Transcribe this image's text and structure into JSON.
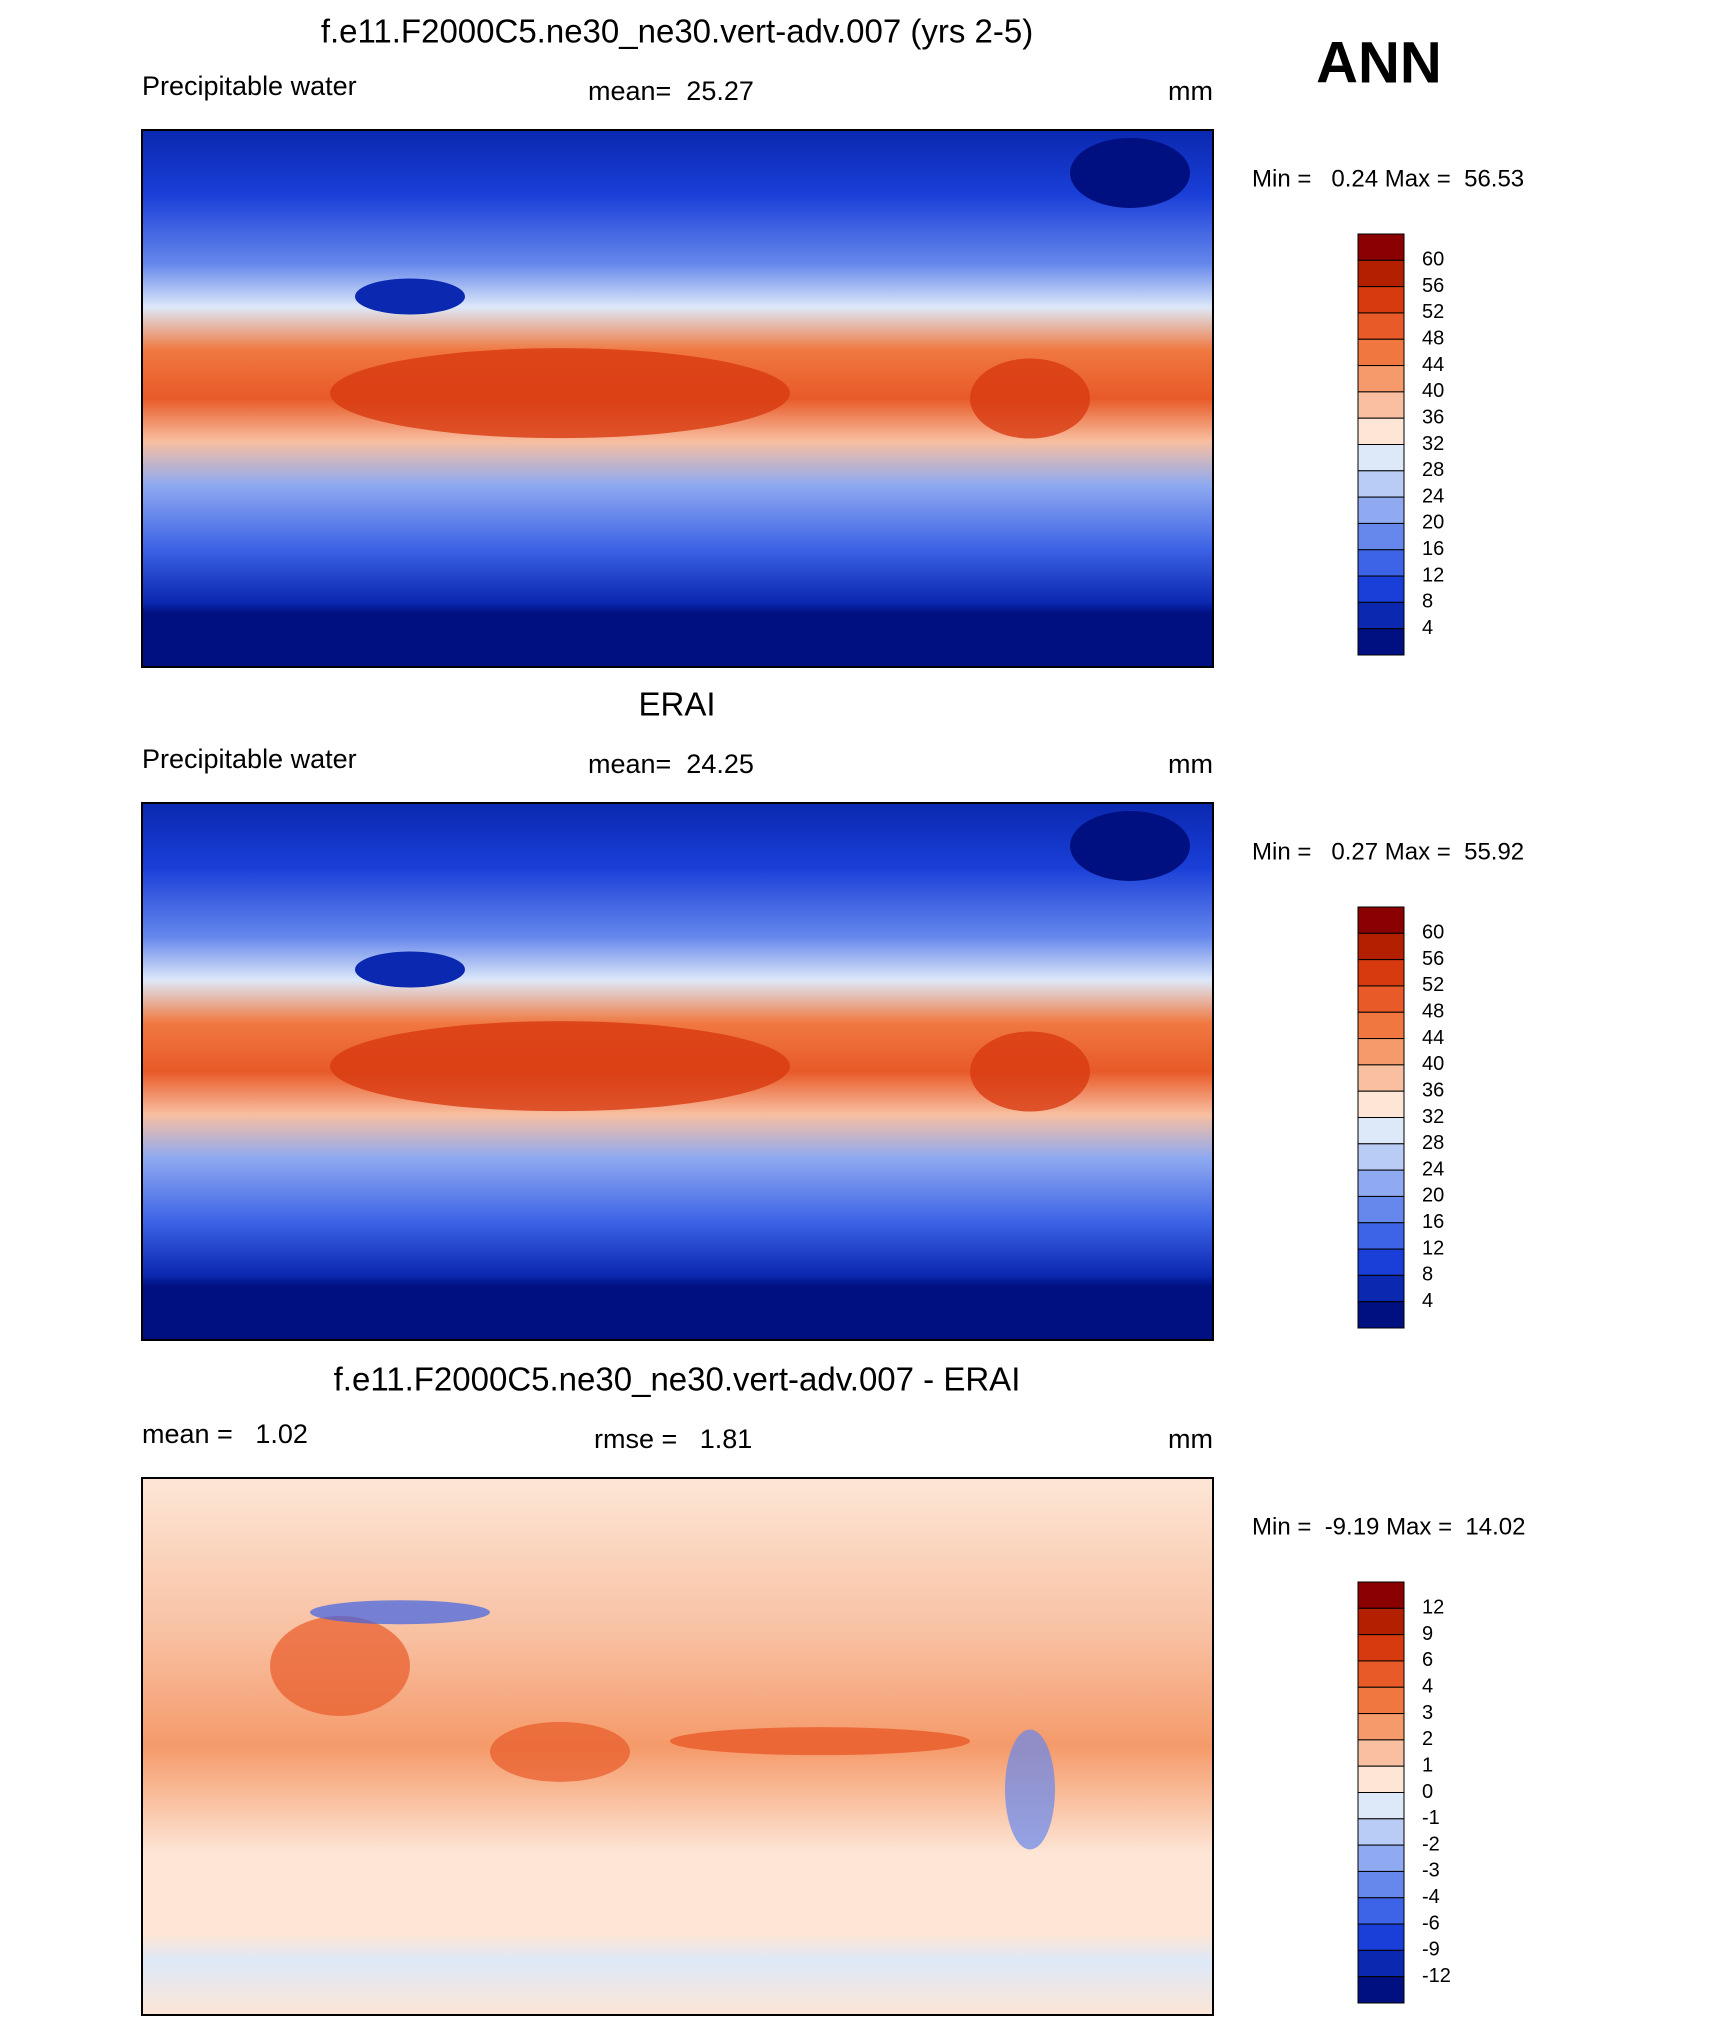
{
  "header": {
    "season": "ANN"
  },
  "panels": [
    {
      "title": "f.e11.F2000C5.ne30_ne30.vert-adv.007 (yrs 2-5)",
      "field_label": "Precipitable water",
      "stat_center": "mean=  25.27",
      "units": "mm",
      "minmax": "Min =   0.24 Max =  56.53",
      "colorbar": {
        "labels": [
          "60",
          "56",
          "52",
          "48",
          "44",
          "40",
          "36",
          "32",
          "28",
          "24",
          "20",
          "16",
          "12",
          "8",
          "4"
        ],
        "colors": [
          "#8b0000",
          "#b22000",
          "#d83a10",
          "#e85a28",
          "#f07840",
          "#f59a6a",
          "#f8bfa0",
          "#fde6d6",
          "#dde8f8",
          "#b8ccf5",
          "#8faaf0",
          "#6688ec",
          "#3d63e6",
          "#1a3fd8",
          "#0a28b0",
          "#001080"
        ]
      }
    },
    {
      "title": "ERAI",
      "field_label": "Precipitable water",
      "stat_center": "mean=  24.25",
      "units": "mm",
      "minmax": "Min =   0.27 Max =  55.92",
      "colorbar": {
        "labels": [
          "60",
          "56",
          "52",
          "48",
          "44",
          "40",
          "36",
          "32",
          "28",
          "24",
          "20",
          "16",
          "12",
          "8",
          "4"
        ],
        "colors": [
          "#8b0000",
          "#b22000",
          "#d83a10",
          "#e85a28",
          "#f07840",
          "#f59a6a",
          "#f8bfa0",
          "#fde6d6",
          "#dde8f8",
          "#b8ccf5",
          "#8faaf0",
          "#6688ec",
          "#3d63e6",
          "#1a3fd8",
          "#0a28b0",
          "#001080"
        ]
      }
    },
    {
      "title": "f.e11.F2000C5.ne30_ne30.vert-adv.007 - ERAI",
      "field_label": "mean =   1.02",
      "stat_center": "rmse =   1.81",
      "units": "mm",
      "minmax": "Min =  -9.19 Max =  14.02",
      "colorbar": {
        "labels": [
          "12",
          "9",
          "6",
          "4",
          "3",
          "2",
          "1",
          "0",
          "-1",
          "-2",
          "-3",
          "-4",
          "-6",
          "-9",
          "-12"
        ],
        "colors": [
          "#8b0000",
          "#b22000",
          "#d83a10",
          "#e85a28",
          "#f07840",
          "#f59a6a",
          "#f8bfa0",
          "#fde6d6",
          "#dde8f8",
          "#b8ccf5",
          "#8faaf0",
          "#6688ec",
          "#3d63e6",
          "#1a3fd8",
          "#0a28b0",
          "#001080"
        ]
      }
    }
  ]
}
